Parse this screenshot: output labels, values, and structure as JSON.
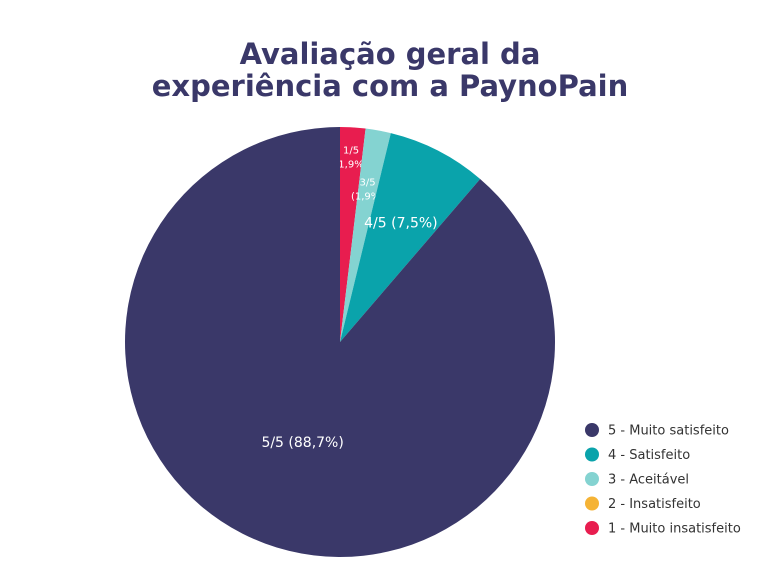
{
  "chart_data": {
    "type": "pie",
    "title": "Avaliação geral da experiência com a PaynoPain",
    "categories": [
      "5 - Muito satisfeito",
      "4 - Satisfeito",
      "3 - Aceitável",
      "2 - Insatisfeito",
      "1 - Muito insatisfeito"
    ],
    "values": [
      88.7,
      7.5,
      1.9,
      0,
      1.9
    ],
    "value_labels": [
      "5/5 (88,7%)",
      "4/5 (7,5%)",
      "3/5 (1,9%)",
      null,
      "1/5 (1,9%)"
    ],
    "colors": [
      "#3a3869",
      "#0aa3ab",
      "#84d3d1",
      "#f5b335",
      "#e81d4f"
    ],
    "legend": "bottom-right"
  }
}
